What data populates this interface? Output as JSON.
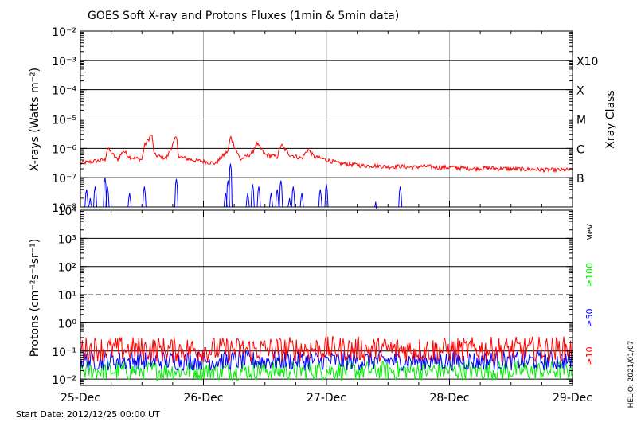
{
  "title": "GOES Soft X-ray and Protons Fluxes   (1min & 5min data)",
  "footer": {
    "start_date": "Start Date: 2012/12/25 00:00 UT",
    "credit": "HELIO: 2021/01/07"
  },
  "colors": {
    "xray_long": "#ff0000",
    "xray_short": "#0000ff",
    "protons_10": "#ff0000",
    "protons_50": "#0000ff",
    "protons_100": "#00ee00",
    "grid": "#000000",
    "day_lines": "#aaaaaa"
  },
  "x_axis": {
    "tick_labels": [
      "25-Dec",
      "26-Dec",
      "27-Dec",
      "28-Dec",
      "29-Dec"
    ],
    "range_days": [
      0,
      4
    ]
  },
  "chart_data": [
    {
      "type": "line",
      "ylabel": "X-rays (Watts m⁻²)",
      "yscale": "log",
      "ylim": [
        1e-08,
        0.01
      ],
      "ytick_labels": [
        "10⁻⁸",
        "10⁻⁷",
        "10⁻⁶",
        "10⁻⁵",
        "10⁻⁴",
        "10⁻³",
        "10⁻²"
      ],
      "right_axis_title": "Xray Class",
      "class_labels": [
        {
          "label": "B",
          "value": 1e-07
        },
        {
          "label": "C",
          "value": 1e-06
        },
        {
          "label": "M",
          "value": 1e-05
        },
        {
          "label": "X",
          "value": 0.0001
        },
        {
          "label": "X10",
          "value": 0.001
        }
      ],
      "grid": true,
      "series": [
        {
          "color": "#ff0000",
          "x": [
            0.0,
            0.1,
            0.2,
            0.22,
            0.3,
            0.35,
            0.4,
            0.5,
            0.52,
            0.58,
            0.6,
            0.65,
            0.7,
            0.78,
            0.8,
            0.9,
            1.0,
            1.1,
            1.15,
            1.2,
            1.22,
            1.3,
            1.4,
            1.43,
            1.5,
            1.6,
            1.63,
            1.7,
            1.8,
            1.85,
            1.9,
            2.0,
            2.1,
            2.2,
            2.3,
            2.4,
            2.5,
            2.6,
            2.7,
            2.8,
            2.9,
            3.0,
            3.1,
            3.2,
            3.3,
            3.4,
            3.5,
            3.6,
            3.7,
            3.8,
            3.9,
            4.0
          ],
          "values": [
            3e-07,
            3.5e-07,
            4e-07,
            1e-06,
            4e-07,
            8e-07,
            5e-07,
            4e-07,
            1.2e-06,
            3e-06,
            6e-07,
            5e-07,
            4.5e-07,
            2.5e-06,
            5e-07,
            4e-07,
            3.5e-07,
            3e-07,
            5e-07,
            8e-07,
            2.5e-06,
            4e-07,
            7e-07,
            1.5e-06,
            6e-07,
            5e-07,
            1.3e-06,
            6e-07,
            4.5e-07,
            9e-07,
            5e-07,
            4e-07,
            3e-07,
            2.8e-07,
            2.5e-07,
            2.5e-07,
            2.3e-07,
            2.4e-07,
            2.2e-07,
            2.4e-07,
            2.2e-07,
            2.2e-07,
            2.1e-07,
            2e-07,
            2.1e-07,
            2e-07,
            2e-07,
            1.9e-07,
            1.9e-07,
            1.8e-07,
            1.8e-07,
            1.8e-07
          ]
        },
        {
          "color": "#0000ff",
          "x": [
            0.05,
            0.08,
            0.12,
            0.2,
            0.22,
            0.4,
            0.52,
            0.78,
            1.18,
            1.2,
            1.22,
            1.36,
            1.4,
            1.45,
            1.55,
            1.6,
            1.63,
            1.7,
            1.73,
            1.8,
            1.95,
            2.0,
            2.4,
            2.6
          ],
          "values": [
            4e-08,
            2e-08,
            5e-08,
            1e-07,
            5e-08,
            3e-08,
            5e-08,
            9e-08,
            3e-08,
            8e-08,
            3e-07,
            3e-08,
            6e-08,
            5e-08,
            3e-08,
            4e-08,
            8e-08,
            2e-08,
            5e-08,
            3e-08,
            4e-08,
            6e-08,
            1.5e-08,
            5e-08
          ]
        }
      ]
    },
    {
      "type": "line",
      "ylabel": "Protons (cm⁻²s⁻¹sr⁻¹)",
      "yscale": "log",
      "ylim": [
        0.006,
        10000
      ],
      "ytick_labels": [
        "10⁻²",
        "10⁻¹",
        "10⁰",
        "10¹",
        "10²",
        "10³",
        "10⁴"
      ],
      "unit_label": "MeV",
      "dashed_threshold": 10,
      "grid": true,
      "series": [
        {
          "name": "≥10",
          "color": "#ff0000",
          "x": [
            0,
            1,
            2,
            3,
            4
          ],
          "values": [
            0.12,
            0.11,
            0.12,
            0.11,
            0.12
          ]
        },
        {
          "name": "≥50",
          "color": "#0000ff",
          "x": [
            0,
            1,
            2,
            3,
            4
          ],
          "values": [
            0.045,
            0.045,
            0.045,
            0.045,
            0.045
          ]
        },
        {
          "name": "≥100",
          "color": "#00ee00",
          "x": [
            0,
            1,
            2,
            3,
            4
          ],
          "values": [
            0.02,
            0.02,
            0.02,
            0.02,
            0.02
          ]
        }
      ]
    }
  ]
}
